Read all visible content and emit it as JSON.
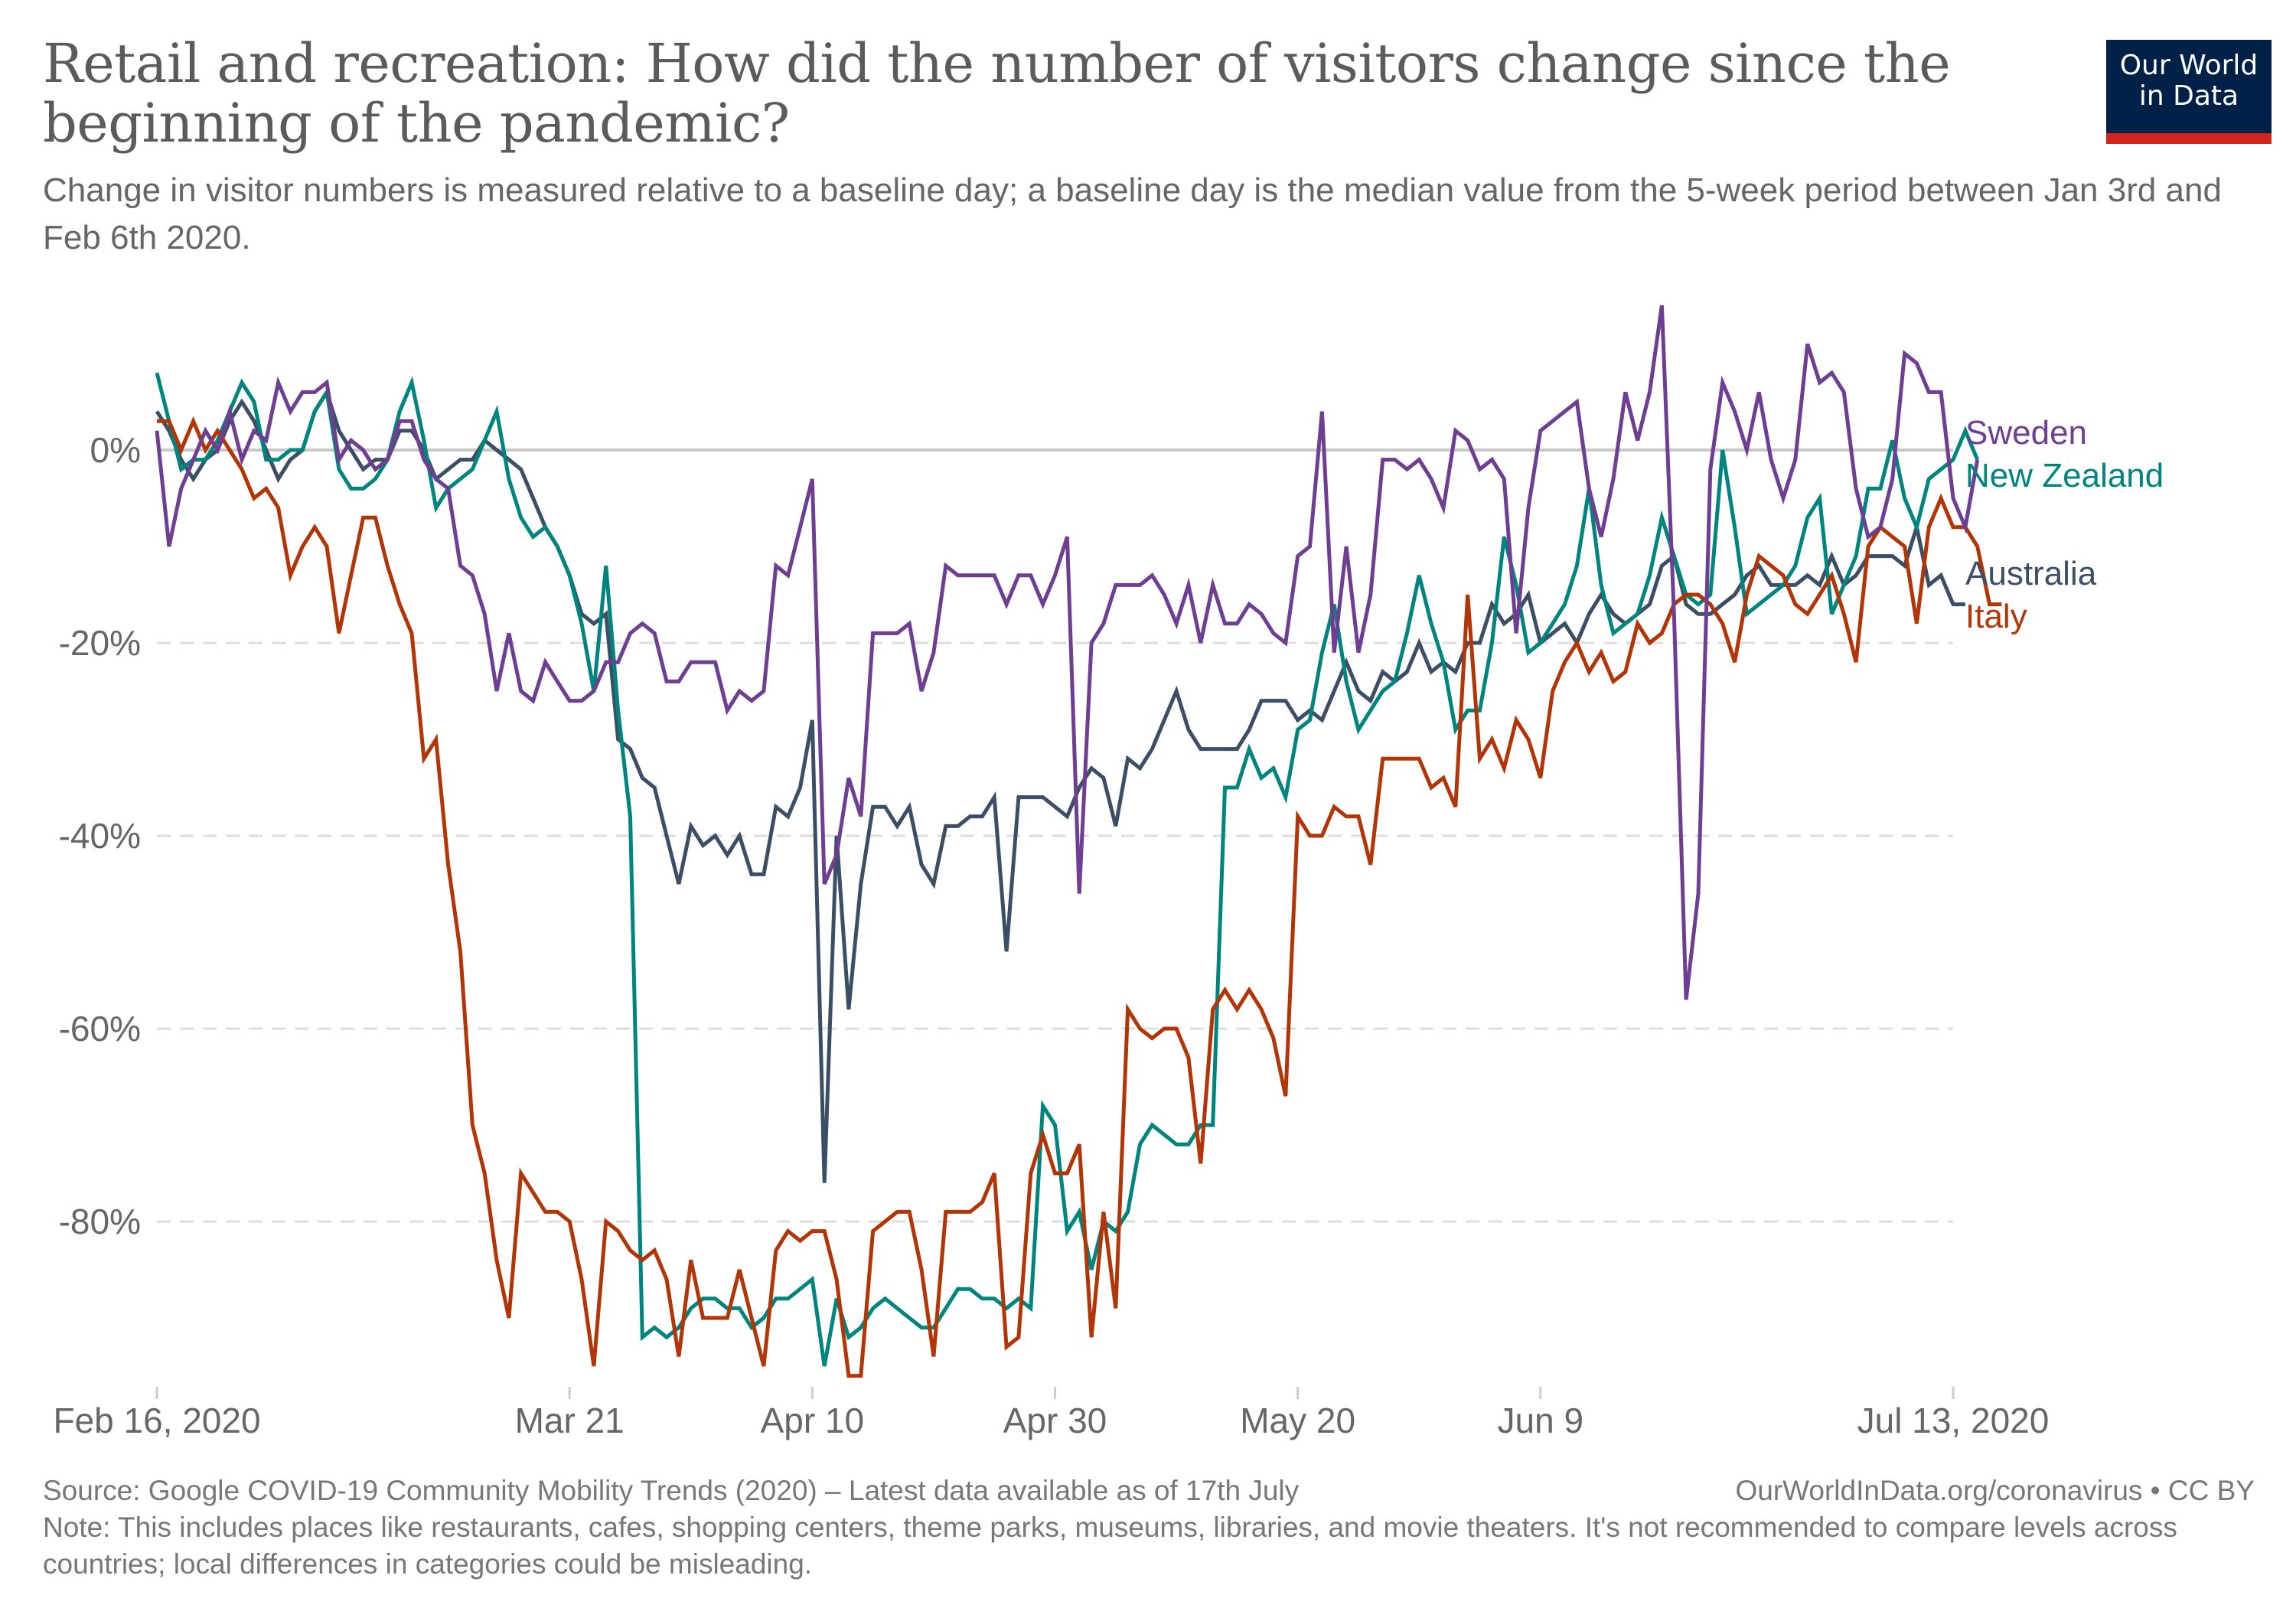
{
  "header": {
    "title": "Retail and recreation: How did the number of visitors change since the beginning of the pandemic?",
    "subtitle": "Change in visitor numbers is measured relative to a baseline day; a baseline day is the median value from the 5-week period between Jan 3rd and Feb 6th 2020."
  },
  "logo": {
    "line1": "Our World",
    "line2": "in Data",
    "bg_color": "#002147",
    "accent_color": "#ce261e"
  },
  "footer": {
    "source": "Source: Google COVID-19 Community Mobility Trends (2020) – Latest data available as of 17th July",
    "license": "OurWorldInData.org/coronavirus • CC BY",
    "note": "Note: This includes places like restaurants, cafes, shopping centers, theme parks, museums, libraries, and movie theaters. It's not recommended to compare levels across countries; local differences in categories could be misleading."
  },
  "chart_data": {
    "type": "line",
    "title": "Retail and recreation: How did the number of visitors change since the beginning of the pandemic?",
    "xlabel": "",
    "ylabel": "",
    "x_start": "2020-02-16",
    "x_end": "2020-07-13",
    "x_unit": "day",
    "xlim_days": [
      0,
      148
    ],
    "ylim": [
      -97,
      15
    ],
    "grid": "horizontal-dashed",
    "legend": "right (line-end labels)",
    "x_ticks": [
      {
        "day": 0,
        "label": "Feb 16, 2020"
      },
      {
        "day": 34,
        "label": "Mar 21"
      },
      {
        "day": 54,
        "label": "Apr 10"
      },
      {
        "day": 74,
        "label": "Apr 30"
      },
      {
        "day": 94,
        "label": "May 20"
      },
      {
        "day": 114,
        "label": "Jun 9"
      },
      {
        "day": 148,
        "label": "Jul 13, 2020"
      }
    ],
    "y_ticks": [
      {
        "value": 0,
        "label": "0%"
      },
      {
        "value": -20,
        "label": "-20%"
      },
      {
        "value": -40,
        "label": "-40%"
      },
      {
        "value": -60,
        "label": "-60%"
      },
      {
        "value": -80,
        "label": "-80%"
      }
    ],
    "series": [
      {
        "name": "Sweden",
        "color": "#6d3e91",
        "values": [
          2,
          -10,
          -4,
          -1,
          2,
          0,
          4,
          -1,
          2,
          1,
          7,
          4,
          6,
          6,
          7,
          -1,
          1,
          0,
          -2,
          -1,
          3,
          3,
          -1,
          -3,
          -4,
          -12,
          -13,
          -17,
          -25,
          -19,
          -25,
          -26,
          -22,
          -24,
          -26,
          -26,
          -25,
          -22,
          -22,
          -19,
          -18,
          -19,
          -24,
          -24,
          -22,
          -22,
          -22,
          -27,
          -25,
          -26,
          -25,
          -12,
          -13,
          -8,
          -3,
          -45,
          -42,
          -34,
          -38,
          -19,
          -19,
          -19,
          -18,
          -25,
          -21,
          -12,
          -13,
          -13,
          -13,
          -13,
          -16,
          -13,
          -13,
          -16,
          -13,
          -9,
          -46,
          -20,
          -18,
          -14,
          -14,
          -14,
          -13,
          -15,
          -18,
          -14,
          -20,
          -14,
          -18,
          -18,
          -16,
          -17,
          -19,
          -20,
          -11,
          -10,
          4,
          -21,
          -10,
          -21,
          -15,
          -1,
          -1,
          -2,
          -1,
          -3,
          -6,
          2,
          1,
          -2,
          -1,
          -3,
          -19,
          -6,
          2,
          3,
          4,
          5,
          -4,
          -9,
          -3,
          6,
          1,
          6,
          15,
          -17,
          -57,
          -46,
          -2,
          7,
          4,
          0,
          6,
          -1,
          -5,
          -1,
          11,
          7,
          8,
          6,
          -4,
          -9,
          -8,
          -3,
          10,
          9,
          6,
          6,
          -5,
          -8,
          -1
        ]
      },
      {
        "name": "New Zealand",
        "color": "#00847e",
        "values": [
          8,
          3,
          -2,
          -1,
          -1,
          1,
          4,
          7,
          5,
          -1,
          -1,
          0,
          0,
          4,
          6,
          -2,
          -4,
          -4,
          -3,
          -1,
          4,
          7,
          1,
          -6,
          -4,
          -3,
          -2,
          1,
          4,
          -3,
          -7,
          -9,
          -8,
          -10,
          -13,
          -18,
          -25,
          -12,
          -27,
          -38,
          -92,
          -91,
          -92,
          -91,
          -89,
          -88,
          -88,
          -89,
          -89,
          -91,
          -90,
          -88,
          -88,
          -87,
          -86,
          -95,
          -88,
          -92,
          -91,
          -89,
          -88,
          -89,
          -90,
          -91,
          -91,
          -89,
          -87,
          -87,
          -88,
          -88,
          -89,
          -88,
          -89,
          -68,
          -70,
          -81,
          -79,
          -85,
          -80,
          -81,
          -79,
          -72,
          -70,
          -71,
          -72,
          -72,
          -70,
          -70,
          -35,
          -35,
          -31,
          -34,
          -33,
          -36,
          -29,
          -28,
          -21,
          -16,
          -24,
          -29,
          -27,
          -25,
          -24,
          -19,
          -13,
          -18,
          -22,
          -29,
          -27,
          -27,
          -20,
          -9,
          -14,
          -21,
          -20,
          -18,
          -16,
          -12,
          -4,
          -14,
          -19,
          -18,
          -17,
          -13,
          -7,
          -11,
          -15,
          -16,
          -15,
          0,
          -8,
          -17,
          -16,
          -15,
          -14,
          -12,
          -7,
          -5,
          -17,
          -14,
          -11,
          -4,
          -4,
          1,
          -5,
          -8,
          -3,
          -2,
          -1,
          2,
          -1
        ]
      },
      {
        "name": "Australia",
        "color": "#3c4e66",
        "values": [
          4,
          2,
          -1,
          -3,
          -1,
          0,
          3,
          5,
          3,
          0,
          -3,
          -1,
          0,
          4,
          6,
          2,
          0,
          -2,
          -1,
          -1,
          2,
          2,
          0,
          -3,
          -2,
          -1,
          -1,
          1,
          0,
          -1,
          -2,
          -5,
          -8,
          -10,
          -13,
          -17,
          -18,
          -17,
          -30,
          -31,
          -34,
          -35,
          -40,
          -45,
          -39,
          -41,
          -40,
          -42,
          -40,
          -44,
          -44,
          -37,
          -38,
          -35,
          -28,
          -76,
          -40,
          -58,
          -45,
          -37,
          -37,
          -39,
          -37,
          -43,
          -45,
          -39,
          -39,
          -38,
          -38,
          -36,
          -52,
          -36,
          -36,
          -36,
          -37,
          -38,
          -35,
          -33,
          -34,
          -39,
          -32,
          -33,
          -31,
          -28,
          -25,
          -29,
          -31,
          -31,
          -31,
          -31,
          -29,
          -26,
          -26,
          -26,
          -28,
          -27,
          -28,
          -25,
          -22,
          -25,
          -26,
          -23,
          -24,
          -23,
          -20,
          -23,
          -22,
          -23,
          -20,
          -20,
          -16,
          -18,
          -17,
          -15,
          -20,
          -19,
          -18,
          -20,
          -17,
          -15,
          -17,
          -18,
          -17,
          -16,
          -12,
          -11,
          -16,
          -17,
          -17,
          -16,
          -15,
          -13,
          -12,
          -14,
          -14,
          -14,
          -13,
          -14,
          -11,
          -14,
          -13,
          -11,
          -11,
          -11,
          -12,
          -8,
          -14,
          -13,
          -16,
          -16
        ]
      },
      {
        "name": "Italy",
        "color": "#b13507",
        "values": [
          3,
          3,
          0,
          3,
          0,
          2,
          0,
          -2,
          -5,
          -4,
          -6,
          -13,
          -10,
          -8,
          -10,
          -19,
          -13,
          -7,
          -7,
          -12,
          -16,
          -19,
          -32,
          -30,
          -43,
          -52,
          -70,
          -75,
          -84,
          -90,
          -75,
          -77,
          -79,
          -79,
          -80,
          -86,
          -95,
          -80,
          -81,
          -83,
          -84,
          -83,
          -86,
          -94,
          -84,
          -90,
          -90,
          -90,
          -85,
          -90,
          -95,
          -83,
          -81,
          -82,
          -81,
          -81,
          -86,
          -96,
          -96,
          -81,
          -80,
          -79,
          -79,
          -85,
          -94,
          -79,
          -79,
          -79,
          -78,
          -75,
          -93,
          -92,
          -75,
          -71,
          -75,
          -75,
          -72,
          -92,
          -79,
          -89,
          -58,
          -60,
          -61,
          -60,
          -60,
          -63,
          -74,
          -58,
          -56,
          -58,
          -56,
          -58,
          -61,
          -67,
          -38,
          -40,
          -40,
          -37,
          -38,
          -38,
          -43,
          -32,
          -32,
          -32,
          -32,
          -35,
          -34,
          -37,
          -15,
          -32,
          -30,
          -33,
          -28,
          -30,
          -34,
          -25,
          -22,
          -20,
          -23,
          -21,
          -24,
          -23,
          -18,
          -20,
          -19,
          -16,
          -15,
          -15,
          -16,
          -18,
          -22,
          -15,
          -11,
          -12,
          -13,
          -16,
          -17,
          -15,
          -13,
          -17,
          -22,
          -10,
          -8,
          -9,
          -10,
          -18,
          -8,
          -5,
          -8,
          -8,
          -10,
          -16,
          -16
        ]
      }
    ]
  }
}
